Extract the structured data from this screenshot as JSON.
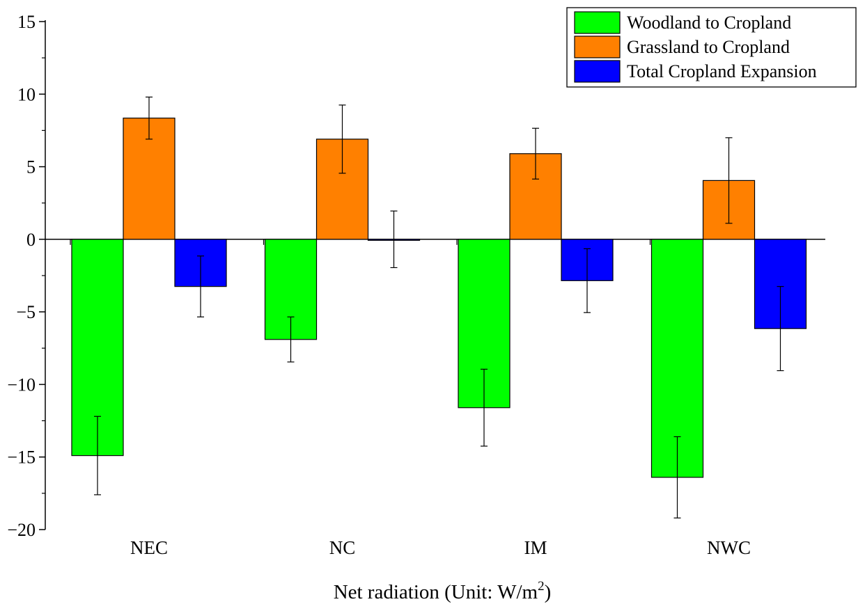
{
  "chart_data": {
    "type": "bar",
    "title": "",
    "xlabel": "Net radiation (Unit: W/m",
    "xlabel_sup": "2",
    "xlabel_end": ")",
    "ylabel": "",
    "ylim": [
      -20,
      15
    ],
    "yticks": [
      15,
      10,
      5,
      0,
      -5,
      -10,
      -15,
      -20
    ],
    "ytick_labels": [
      "15",
      "10",
      "5",
      "0",
      "−5",
      "−10",
      "−15",
      "−20"
    ],
    "categories": [
      "NEC",
      "NC",
      "IM",
      "NWC"
    ],
    "grid": false,
    "legend_position": "top-right",
    "series": [
      {
        "name": "Woodland to Cropland",
        "color": "#00ff00",
        "values": [
          -14.9,
          -6.9,
          -11.6,
          -16.4
        ],
        "error": [
          2.7,
          1.55,
          2.65,
          2.8
        ]
      },
      {
        "name": "Grassland to Cropland",
        "color": "#ff8000",
        "values": [
          8.35,
          6.9,
          5.9,
          4.05
        ],
        "error": [
          1.45,
          2.35,
          1.75,
          2.95
        ]
      },
      {
        "name": "Total Cropland Expansion",
        "color": "#0000ff",
        "values": [
          -3.25,
          0.0,
          -2.85,
          -6.15
        ],
        "error": [
          2.1,
          1.95,
          2.2,
          2.9
        ]
      }
    ]
  }
}
